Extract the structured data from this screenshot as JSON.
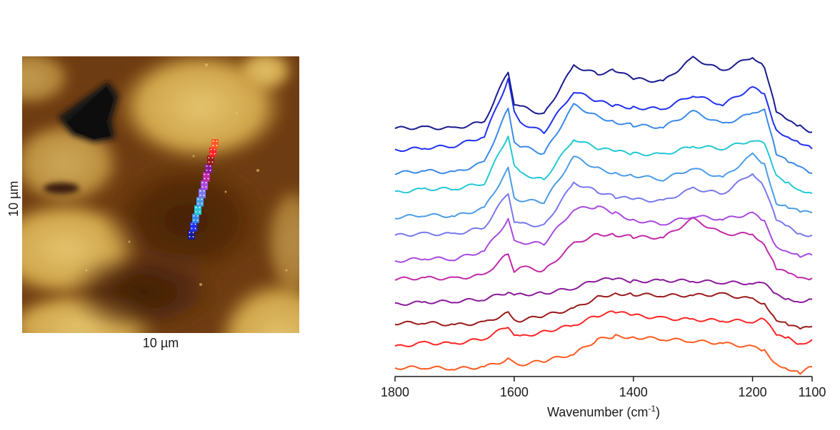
{
  "afm": {
    "x_scale_label": "10 µm",
    "y_scale_label": "10 µm",
    "scan_point_colors": [
      "#ff5a1e",
      "#ff2424",
      "#9a1a1a",
      "#8a1a9a",
      "#c22aa8",
      "#a84ae0",
      "#7a78ee",
      "#4a9ce6",
      "#24c8d6",
      "#3a8ae8",
      "#2030f0",
      "#1a1a90"
    ]
  },
  "chart_data": {
    "type": "line",
    "xlabel": "Wavenumber (cm",
    "xlabel_superscript": "-1",
    "xlabel_suffix": ")",
    "xlim": [
      1800,
      1100
    ],
    "x_reversed": true,
    "xticks": [
      1800,
      1600,
      1400,
      1200,
      1100
    ],
    "y_axis_shown": false,
    "series_offset_stacked": true,
    "series": [
      {
        "color": "#ff5a1e",
        "x": [
          1800,
          1750,
          1700,
          1650,
          1610,
          1600,
          1590,
          1550,
          1500,
          1460,
          1430,
          1400,
          1350,
          1300,
          1250,
          1200,
          1180,
          1160,
          1140,
          1120,
          1100
        ],
        "y": [
          0.0,
          0.05,
          0.03,
          0.1,
          0.35,
          0.22,
          0.15,
          0.25,
          0.45,
          0.9,
          1.0,
          0.95,
          0.9,
          0.85,
          0.8,
          0.7,
          0.6,
          0.2,
          0.05,
          -0.1,
          0.1
        ]
      },
      {
        "color": "#ff2424",
        "x": [
          1800,
          1750,
          1700,
          1650,
          1610,
          1600,
          1590,
          1550,
          1500,
          1460,
          1430,
          1400,
          1350,
          1300,
          1250,
          1200,
          1180,
          1160,
          1140,
          1120,
          1100
        ],
        "y": [
          0.0,
          0.1,
          0.05,
          0.2,
          0.6,
          0.3,
          0.25,
          0.45,
          0.7,
          1.05,
          1.2,
          1.1,
          1.0,
          0.95,
          0.9,
          0.85,
          0.9,
          0.3,
          0.2,
          0.0,
          0.15
        ]
      },
      {
        "color": "#9a1a1a",
        "x": [
          1800,
          1750,
          1700,
          1650,
          1610,
          1600,
          1590,
          1550,
          1500,
          1460,
          1430,
          1400,
          1350,
          1300,
          1250,
          1200,
          1180,
          1160,
          1140,
          1120,
          1100
        ],
        "y": [
          0.0,
          0.05,
          0.0,
          0.1,
          0.45,
          0.25,
          0.2,
          0.35,
          0.55,
          0.9,
          1.0,
          0.95,
          0.9,
          0.9,
          0.95,
          0.8,
          0.7,
          0.2,
          0.05,
          -0.1,
          0.0
        ]
      },
      {
        "color": "#8a1a9a",
        "x": [
          1800,
          1750,
          1700,
          1650,
          1610,
          1600,
          1590,
          1550,
          1500,
          1460,
          1430,
          1400,
          1350,
          1300,
          1250,
          1200,
          1180,
          1160,
          1140,
          1120,
          1100
        ],
        "y": [
          0.0,
          0.05,
          0.05,
          0.1,
          0.3,
          0.15,
          0.2,
          0.25,
          0.45,
          0.75,
          0.8,
          0.75,
          0.8,
          0.8,
          0.75,
          0.7,
          0.65,
          0.25,
          0.1,
          0.0,
          0.05
        ]
      },
      {
        "color": "#c22aa8",
        "x": [
          1800,
          1750,
          1700,
          1650,
          1610,
          1600,
          1590,
          1550,
          1500,
          1460,
          1430,
          1400,
          1350,
          1300,
          1250,
          1200,
          1180,
          1160,
          1140,
          1120,
          1100
        ],
        "y": [
          0.0,
          0.05,
          0.05,
          0.2,
          0.95,
          0.4,
          0.55,
          0.4,
          1.3,
          1.6,
          1.55,
          1.45,
          1.4,
          2.0,
          1.5,
          1.5,
          1.2,
          0.4,
          0.25,
          0.1,
          0.15
        ]
      },
      {
        "color": "#a84ae0",
        "x": [
          1800,
          1750,
          1700,
          1650,
          1610,
          1600,
          1590,
          1550,
          1500,
          1460,
          1430,
          1400,
          1350,
          1300,
          1250,
          1200,
          1180,
          1160,
          1140,
          1120,
          1100
        ],
        "y": [
          0.0,
          0.1,
          0.05,
          0.3,
          1.3,
          0.55,
          0.5,
          0.45,
          1.6,
          1.7,
          1.5,
          1.3,
          1.2,
          1.5,
          1.4,
          1.6,
          1.3,
          0.45,
          0.3,
          0.1,
          0.1
        ]
      },
      {
        "color": "#7a78ee",
        "x": [
          1800,
          1750,
          1700,
          1650,
          1610,
          1600,
          1590,
          1550,
          1500,
          1460,
          1430,
          1400,
          1350,
          1300,
          1250,
          1200,
          1180,
          1160,
          1140,
          1120,
          1100
        ],
        "y": [
          0.0,
          0.05,
          0.05,
          0.3,
          1.5,
          0.55,
          0.5,
          0.45,
          1.9,
          1.6,
          1.4,
          1.3,
          1.2,
          1.6,
          1.4,
          2.1,
          1.6,
          0.5,
          0.3,
          0.1,
          0.1
        ]
      },
      {
        "color": "#4a9ce6",
        "x": [
          1800,
          1750,
          1700,
          1650,
          1610,
          1600,
          1590,
          1550,
          1500,
          1460,
          1430,
          1400,
          1350,
          1300,
          1250,
          1200,
          1180,
          1160,
          1140,
          1120,
          1100
        ],
        "y": [
          0.0,
          0.1,
          0.05,
          0.3,
          1.6,
          0.6,
          0.5,
          0.4,
          1.9,
          1.5,
          1.35,
          1.3,
          1.2,
          1.6,
          1.3,
          2.1,
          1.8,
          0.5,
          0.35,
          0.15,
          0.1
        ]
      },
      {
        "color": "#24c8d6",
        "x": [
          1800,
          1750,
          1700,
          1650,
          1610,
          1600,
          1590,
          1550,
          1500,
          1460,
          1430,
          1400,
          1350,
          1300,
          1250,
          1200,
          1180,
          1160,
          1140,
          1120,
          1100
        ],
        "y": [
          0.0,
          0.1,
          0.1,
          0.3,
          1.9,
          0.9,
          0.7,
          0.5,
          1.9,
          1.6,
          1.5,
          1.4,
          1.35,
          1.6,
          1.5,
          1.75,
          1.6,
          0.5,
          0.3,
          0.1,
          0.0
        ]
      },
      {
        "color": "#3a8ae8",
        "x": [
          1800,
          1750,
          1700,
          1650,
          1610,
          1600,
          1590,
          1550,
          1500,
          1460,
          1430,
          1400,
          1350,
          1300,
          1250,
          1200,
          1180,
          1160,
          1140,
          1120,
          1100
        ],
        "y": [
          0.0,
          0.1,
          0.05,
          0.4,
          2.2,
          1.1,
          0.9,
          0.6,
          2.2,
          1.8,
          1.6,
          1.5,
          1.45,
          2.0,
          1.6,
          2.0,
          2.2,
          0.7,
          0.4,
          0.2,
          0.0
        ]
      },
      {
        "color": "#2030f0",
        "x": [
          1800,
          1750,
          1700,
          1650,
          1610,
          1600,
          1590,
          1550,
          1500,
          1460,
          1430,
          1400,
          1350,
          1300,
          1250,
          1200,
          1180,
          1160,
          1140,
          1120,
          1100
        ],
        "y": [
          0.0,
          0.05,
          0.1,
          0.4,
          2.3,
          1.2,
          0.9,
          0.6,
          2.0,
          1.7,
          1.55,
          1.5,
          1.45,
          1.9,
          1.55,
          2.1,
          1.8,
          0.6,
          0.4,
          0.2,
          0.0
        ]
      },
      {
        "color": "#1a1a90",
        "x": [
          1800,
          1750,
          1700,
          1650,
          1610,
          1600,
          1590,
          1550,
          1500,
          1460,
          1430,
          1400,
          1350,
          1300,
          1250,
          1200,
          1180,
          1160,
          1140,
          1120,
          1100
        ],
        "y": [
          0.0,
          0.05,
          0.05,
          0.3,
          2.0,
          0.9,
          0.8,
          0.5,
          2.1,
          1.8,
          1.9,
          1.6,
          1.5,
          2.3,
          1.9,
          2.4,
          2.1,
          0.6,
          0.3,
          0.15,
          -0.05
        ]
      }
    ]
  }
}
